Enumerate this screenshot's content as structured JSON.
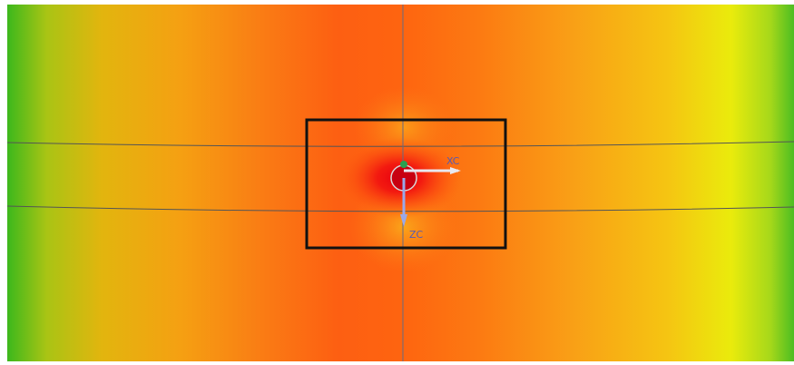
{
  "viewport": {
    "axis_labels": {
      "x": "XC",
      "z": "ZC"
    }
  }
}
